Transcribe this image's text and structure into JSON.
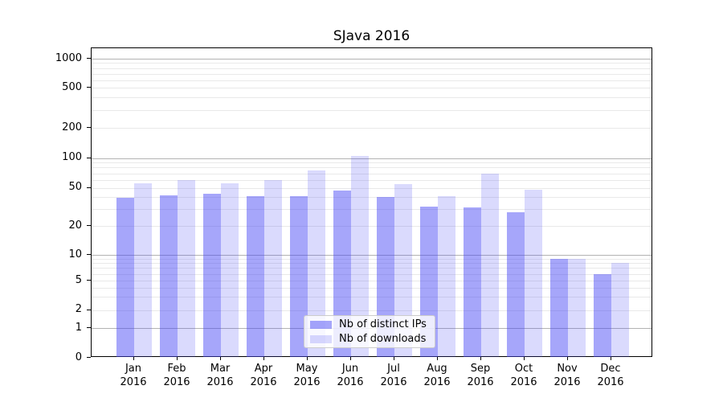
{
  "chart_data": {
    "type": "bar",
    "title": "SJava 2016",
    "year": "2016",
    "months": [
      "Jan",
      "Feb",
      "Mar",
      "Apr",
      "May",
      "Jun",
      "Jul",
      "Aug",
      "Sep",
      "Oct",
      "Nov",
      "Dec"
    ],
    "series": [
      {
        "key": "ips",
        "name": "Nb of distinct IPs",
        "color": "rgba(68,68,245,0.48)",
        "values": [
          39,
          42,
          43,
          41,
          41,
          47,
          40,
          32,
          31,
          28,
          9,
          6
        ]
      },
      {
        "key": "downloads",
        "name": "Nb of downloads",
        "color": "rgba(68,68,245,0.20)",
        "values": [
          55,
          60,
          55,
          60,
          75,
          105,
          54,
          41,
          70,
          48,
          9,
          8
        ]
      }
    ],
    "y_axis": {
      "ticks": [
        0,
        1,
        2,
        5,
        10,
        20,
        50,
        100,
        200,
        500,
        1000
      ],
      "scale": "log-like (asinh)",
      "range": [
        0,
        1200
      ]
    },
    "x_axis": {
      "tick_label_format": "month over year"
    },
    "grid": {
      "on": true,
      "major_values": [
        1,
        10,
        100,
        1000
      ],
      "minor_values": [
        2,
        3,
        4,
        5,
        6,
        7,
        8,
        9,
        20,
        30,
        40,
        50,
        60,
        70,
        80,
        90,
        200,
        300,
        400,
        500,
        600,
        700,
        800,
        900
      ]
    },
    "legend": {
      "position": "lower-center"
    }
  },
  "colors": {
    "bar_ips": "rgba(68,68,245,0.48)",
    "bar_downloads": "rgba(68,68,245,0.20)",
    "grid_major": "#b3b3b3",
    "grid_minor": "#e9e9e9",
    "spine": "#000000",
    "background": "#ffffff"
  }
}
